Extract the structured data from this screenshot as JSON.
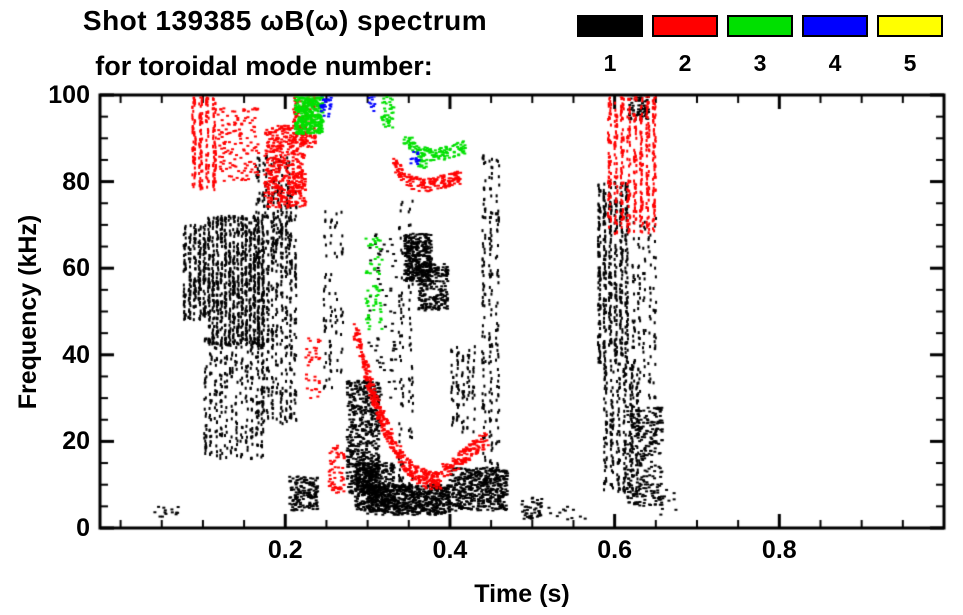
{
  "title": {
    "line1": "Shot 139385 ωB(ω) spectrum",
    "line2": "for toroidal mode number:"
  },
  "legend": {
    "items": [
      {
        "label": "1",
        "color": "#000000"
      },
      {
        "label": "2",
        "color": "#ff0000"
      },
      {
        "label": "3",
        "color": "#00e000"
      },
      {
        "label": "4",
        "color": "#0000ff"
      },
      {
        "label": "5",
        "color": "#ffff00"
      }
    ]
  },
  "chart_data": {
    "type": "scatter",
    "title": "Shot 139385 ωB(ω) spectrum for toroidal mode number",
    "xlabel": "Time (s)",
    "ylabel": "Frequency (kHz)",
    "xlim": [
      -0.025,
      1.0
    ],
    "ylim": [
      0,
      100
    ],
    "x_major_ticks": [
      0.2,
      0.4,
      0.6,
      0.8
    ],
    "x_tick_labels": [
      "0.2",
      "0.4",
      "0.6",
      "0.8"
    ],
    "x_minor_step": 0.05,
    "y_major_ticks": [
      0,
      20,
      40,
      60,
      80,
      100
    ],
    "y_tick_labels": [
      "0",
      "20",
      "40",
      "60",
      "80",
      "100"
    ],
    "y_minor_step": 5,
    "grid": false,
    "legend_position": "top-right",
    "mode_colors": {
      "1": "#000000",
      "2": "#ff0000",
      "3": "#00e000",
      "4": "#0000ff",
      "5": "#ffff00"
    },
    "clusters": [
      {
        "mode": 1,
        "type": "cols",
        "t": [
          0.075,
          0.105
        ],
        "f": [
          48,
          70
        ],
        "cols": 5,
        "n": 260
      },
      {
        "mode": 1,
        "type": "cols",
        "t": [
          0.105,
          0.175
        ],
        "f": [
          42,
          72
        ],
        "cols": 14,
        "n": 950
      },
      {
        "mode": 1,
        "type": "cols",
        "t": [
          0.1,
          0.175
        ],
        "f": [
          16,
          44
        ],
        "cols": 12,
        "n": 330
      },
      {
        "mode": 1,
        "type": "cols",
        "t": [
          0.165,
          0.215
        ],
        "f": [
          24,
          78
        ],
        "cols": 9,
        "n": 520
      },
      {
        "mode": 1,
        "type": "cols",
        "t": [
          0.162,
          0.208
        ],
        "f": [
          62,
          86
        ],
        "cols": 5,
        "n": 150
      },
      {
        "mode": 1,
        "type": "blob",
        "t": [
          0.205,
          0.24
        ],
        "f": [
          4,
          12
        ],
        "n": 150
      },
      {
        "mode": 1,
        "type": "cols",
        "t": [
          0.245,
          0.272
        ],
        "f": [
          32,
          74
        ],
        "cols": 4,
        "n": 90
      },
      {
        "mode": 1,
        "type": "blob",
        "t": [
          0.275,
          0.315
        ],
        "f": [
          8,
          34
        ],
        "n": 520
      },
      {
        "mode": 1,
        "type": "blob",
        "t": [
          0.285,
          0.335
        ],
        "f": [
          4,
          15
        ],
        "n": 380
      },
      {
        "mode": 1,
        "type": "blob",
        "t": [
          0.3,
          0.335
        ],
        "f": [
          30,
          68
        ],
        "n": 70
      },
      {
        "mode": 1,
        "type": "cols",
        "t": [
          0.335,
          0.358
        ],
        "f": [
          8,
          76
        ],
        "cols": 2,
        "n": 110
      },
      {
        "mode": 1,
        "type": "blob",
        "t": [
          0.3,
          0.4
        ],
        "f": [
          3,
          10
        ],
        "n": 650
      },
      {
        "mode": 1,
        "type": "blob",
        "t": [
          0.345,
          0.378
        ],
        "f": [
          57,
          68
        ],
        "n": 330
      },
      {
        "mode": 1,
        "type": "blob",
        "t": [
          0.362,
          0.398
        ],
        "f": [
          50,
          61
        ],
        "n": 220
      },
      {
        "mode": 1,
        "type": "cols",
        "t": [
          0.4,
          0.432
        ],
        "f": [
          22,
          42
        ],
        "cols": 5,
        "n": 100
      },
      {
        "mode": 1,
        "type": "blob",
        "t": [
          0.4,
          0.47
        ],
        "f": [
          4,
          14
        ],
        "n": 430
      },
      {
        "mode": 1,
        "type": "cols",
        "t": [
          0.437,
          0.462
        ],
        "f": [
          5,
          86
        ],
        "cols": 3,
        "n": 240
      },
      {
        "mode": 1,
        "type": "blob",
        "t": [
          0.487,
          0.512
        ],
        "f": [
          2,
          7
        ],
        "n": 45
      },
      {
        "mode": 1,
        "type": "cols",
        "t": [
          0.578,
          0.618
        ],
        "f": [
          38,
          80
        ],
        "cols": 6,
        "n": 560
      },
      {
        "mode": 1,
        "type": "cols",
        "t": [
          0.585,
          0.632
        ],
        "f": [
          8,
          38
        ],
        "cols": 6,
        "n": 310
      },
      {
        "mode": 1,
        "type": "blob",
        "t": [
          0.615,
          0.658
        ],
        "f": [
          5,
          28
        ],
        "n": 260
      },
      {
        "mode": 1,
        "type": "cols",
        "t": [
          0.62,
          0.652
        ],
        "f": [
          30,
          72
        ],
        "cols": 5,
        "n": 130
      },
      {
        "mode": 1,
        "type": "blob",
        "t": [
          0.615,
          0.642
        ],
        "f": [
          94,
          100
        ],
        "n": 70
      },
      {
        "mode": 1,
        "type": "blob",
        "t": [
          0.04,
          0.075
        ],
        "f": [
          2,
          5
        ],
        "n": 14
      },
      {
        "mode": 1,
        "type": "blob",
        "t": [
          0.52,
          0.565
        ],
        "f": [
          2,
          5
        ],
        "n": 12
      },
      {
        "mode": 1,
        "type": "blob",
        "t": [
          0.655,
          0.675
        ],
        "f": [
          3,
          9
        ],
        "n": 12
      },
      {
        "mode": 2,
        "type": "cols",
        "t": [
          0.085,
          0.118
        ],
        "f": [
          78,
          100
        ],
        "cols": 4,
        "n": 230
      },
      {
        "mode": 2,
        "type": "blob",
        "t": [
          0.118,
          0.168
        ],
        "f": [
          80,
          97
        ],
        "n": 130
      },
      {
        "mode": 2,
        "type": "blob",
        "t": [
          0.175,
          0.225
        ],
        "f": [
          74,
          93
        ],
        "n": 480
      },
      {
        "mode": 2,
        "type": "blob",
        "t": [
          0.21,
          0.237
        ],
        "f": [
          88,
          100
        ],
        "n": 130
      },
      {
        "mode": 2,
        "type": "curve",
        "pts": [
          [
            0.285,
            46
          ],
          [
            0.296,
            38
          ],
          [
            0.306,
            31
          ],
          [
            0.316,
            26
          ],
          [
            0.327,
            21
          ],
          [
            0.341,
            16
          ],
          [
            0.356,
            13
          ],
          [
            0.372,
            11
          ],
          [
            0.388,
            11
          ]
        ],
        "jitter": 2.2,
        "n": 420
      },
      {
        "mode": 2,
        "type": "curve",
        "pts": [
          [
            0.392,
            13
          ],
          [
            0.42,
            17
          ],
          [
            0.447,
            21
          ]
        ],
        "jitter": 1.8,
        "n": 130
      },
      {
        "mode": 2,
        "type": "curve",
        "pts": [
          [
            0.332,
            84
          ],
          [
            0.352,
            80
          ],
          [
            0.372,
            79
          ],
          [
            0.392,
            80
          ],
          [
            0.412,
            81
          ]
        ],
        "jitter": 1.6,
        "n": 170
      },
      {
        "mode": 2,
        "type": "cols",
        "t": [
          0.59,
          0.652
        ],
        "f": [
          68,
          100
        ],
        "cols": 8,
        "n": 520
      },
      {
        "mode": 2,
        "type": "blob",
        "t": [
          0.253,
          0.272
        ],
        "f": [
          8,
          19
        ],
        "n": 60
      },
      {
        "mode": 2,
        "type": "blob",
        "t": [
          0.225,
          0.243
        ],
        "f": [
          30,
          44
        ],
        "n": 35
      },
      {
        "mode": 3,
        "type": "blob",
        "t": [
          0.212,
          0.246
        ],
        "f": [
          91,
          100
        ],
        "n": 380
      },
      {
        "mode": 3,
        "type": "blob",
        "t": [
          0.298,
          0.318
        ],
        "f": [
          45,
          67
        ],
        "n": 65
      },
      {
        "mode": 3,
        "type": "curve",
        "pts": [
          [
            0.345,
            90
          ],
          [
            0.362,
            87
          ],
          [
            0.382,
            86
          ],
          [
            0.402,
            87
          ],
          [
            0.418,
            88
          ]
        ],
        "jitter": 1.5,
        "n": 130
      },
      {
        "mode": 3,
        "type": "blob",
        "t": [
          0.315,
          0.332
        ],
        "f": [
          92,
          100
        ],
        "n": 45
      },
      {
        "mode": 3,
        "type": "blob",
        "t": [
          0.362,
          0.372
        ],
        "f": [
          83,
          86
        ],
        "n": 20
      },
      {
        "mode": 4,
        "type": "blob",
        "t": [
          0.243,
          0.256
        ],
        "f": [
          95,
          100
        ],
        "n": 28
      },
      {
        "mode": 4,
        "type": "blob",
        "t": [
          0.352,
          0.363
        ],
        "f": [
          84,
          87
        ],
        "n": 14
      },
      {
        "mode": 4,
        "type": "blob",
        "t": [
          0.301,
          0.309
        ],
        "f": [
          96,
          100
        ],
        "n": 10
      }
    ]
  }
}
